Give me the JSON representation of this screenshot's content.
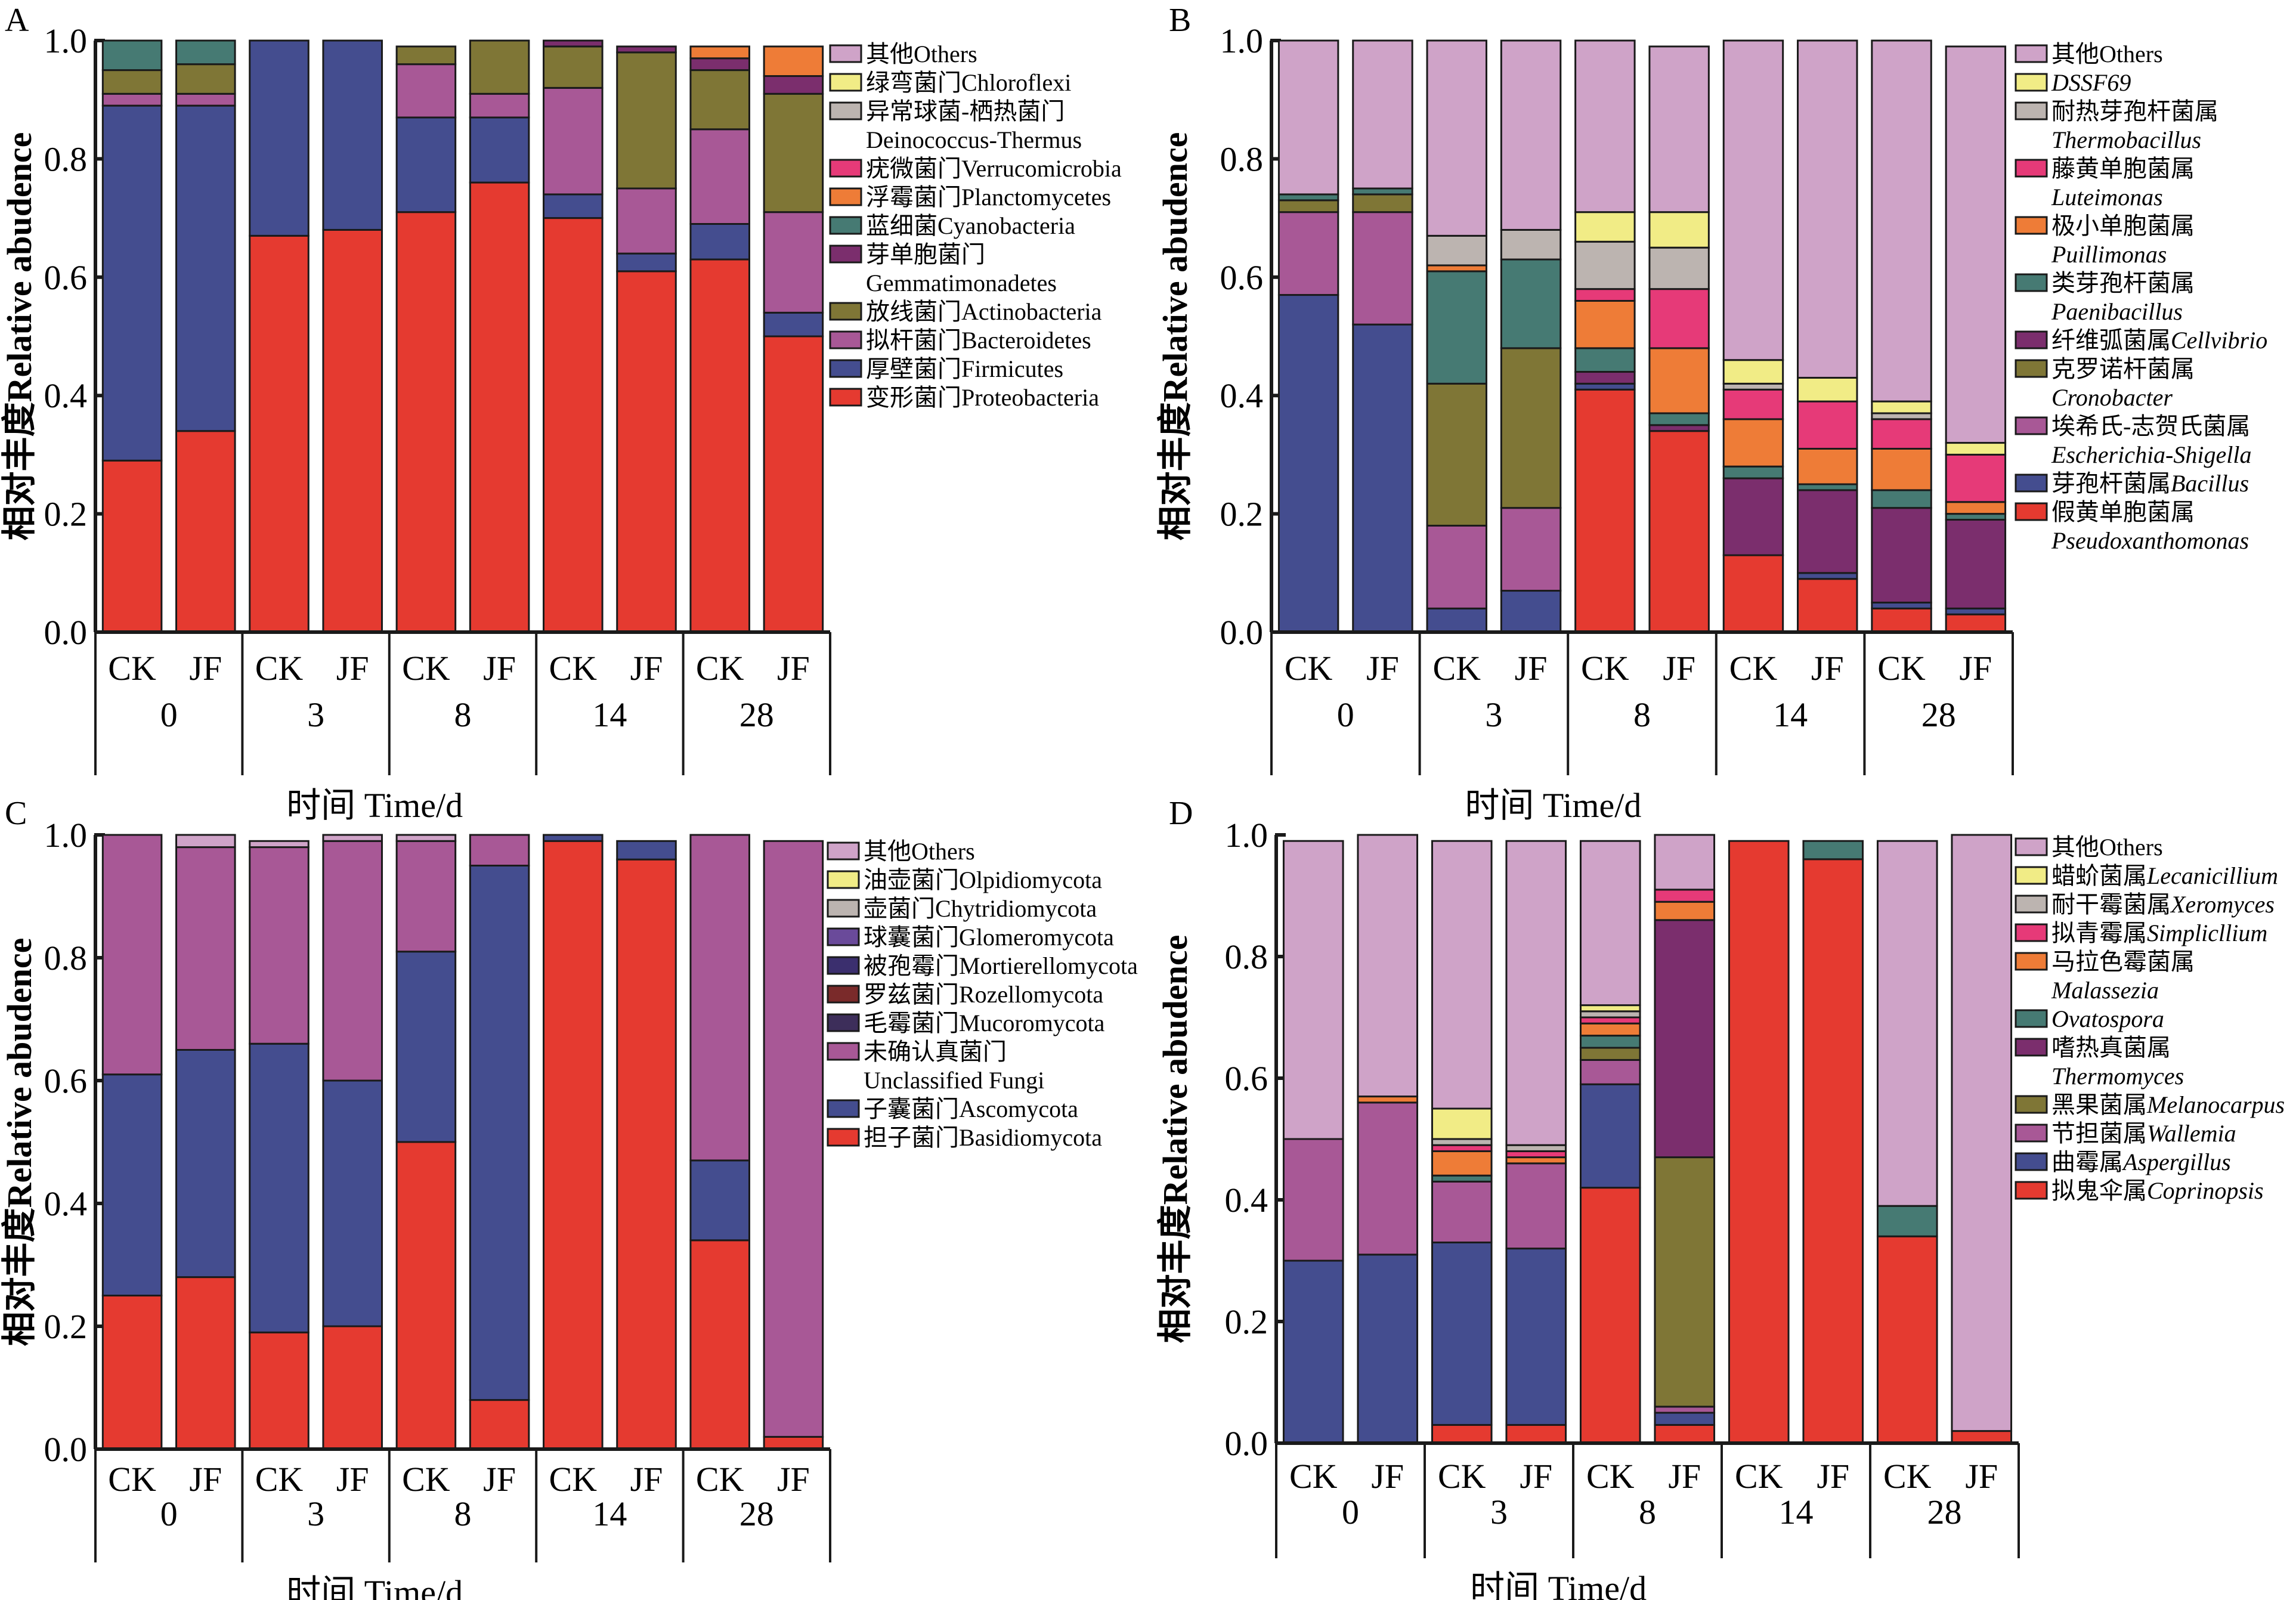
{
  "figure": {
    "y_axis_title": "相对丰度Relative abudence",
    "x_axis_title": "时间  Time/d",
    "groups": [
      "CK",
      "JF"
    ],
    "days": [
      "0",
      "3",
      "8",
      "14",
      "28"
    ],
    "y_ticks": [
      "0.0",
      "0.2",
      "0.4",
      "0.6",
      "0.8",
      "1.0"
    ]
  },
  "chart_data": [
    {
      "panel": "A",
      "type": "bar",
      "stacked": true,
      "title": "A",
      "xlabel": "时间  Time/d",
      "ylabel": "相对丰度Relative abudence",
      "ylim": [
        0,
        1.0
      ],
      "categories": [
        "CK-0",
        "JF-0",
        "CK-3",
        "JF-3",
        "CK-8",
        "JF-8",
        "CK-14",
        "JF-14",
        "CK-28",
        "JF-28"
      ],
      "legend_position": "right",
      "series": [
        {
          "name": "变形菌门Proteobacteria",
          "color": "#e53a30",
          "values": [
            0.29,
            0.34,
            0.67,
            0.68,
            0.71,
            0.76,
            0.7,
            0.61,
            0.63,
            0.5
          ]
        },
        {
          "name": "厚壁菌门Firmicutes",
          "color": "#444d8f",
          "values": [
            0.6,
            0.55,
            0.33,
            0.32,
            0.16,
            0.11,
            0.04,
            0.03,
            0.06,
            0.04
          ]
        },
        {
          "name": "拟杆菌门Bacteroidetes",
          "color": "#a85896",
          "values": [
            0.02,
            0.02,
            0,
            0,
            0.09,
            0.04,
            0.18,
            0.11,
            0.16,
            0.17
          ]
        },
        {
          "name": "放线菌门Actinobacteria",
          "color": "#7f7636",
          "values": [
            0.04,
            0.05,
            0,
            0,
            0.03,
            0.09,
            0.07,
            0.23,
            0.1,
            0.2
          ]
        },
        {
          "name": "芽单胞菌门Gemmatimonadetes",
          "color": "#7b2e6d",
          "values": [
            0,
            0,
            0,
            0,
            0,
            0,
            0.01,
            0.01,
            0.02,
            0.03
          ]
        },
        {
          "name": "蓝细菌Cyanobacteria",
          "color": "#467a73",
          "values": [
            0.05,
            0.04,
            0,
            0,
            0,
            0,
            0,
            0,
            0,
            0
          ]
        },
        {
          "name": "浮霉菌门Planctomycetes",
          "color": "#ee7c37",
          "values": [
            0,
            0,
            0,
            0,
            0,
            0,
            0,
            0,
            0.02,
            0.05
          ]
        },
        {
          "name": "疣微菌门Verrucomicrobia",
          "color": "#e63a78",
          "values": [
            0,
            0,
            0,
            0,
            0,
            0,
            0,
            0,
            0,
            0
          ]
        },
        {
          "name": "异常球菌-栖热菌门Deinococcus-Thermus",
          "color": "#bcb4b0",
          "values": [
            0,
            0,
            0,
            0,
            0,
            0,
            0,
            0,
            0,
            0
          ]
        },
        {
          "name": "绿弯菌门Chloroflexi",
          "color": "#f1ec86",
          "values": [
            0,
            0,
            0,
            0,
            0,
            0,
            0,
            0,
            0,
            0
          ]
        },
        {
          "name": "其他Others",
          "color": "#cfa3c8",
          "values": [
            0,
            0,
            0,
            0,
            0,
            0,
            0,
            0,
            0,
            0
          ]
        }
      ],
      "legend": [
        {
          "cn": "其他Others",
          "en": "",
          "color": "#cfa3c8"
        },
        {
          "cn": "绿弯菌门Chloroflexi",
          "en": "",
          "color": "#f1ec86"
        },
        {
          "cn": "异常球菌-栖热菌门",
          "en": "Deinococcus-Thermus",
          "color": "#bcb4b0"
        },
        {
          "cn": "疣微菌门Verrucomicrobia",
          "en": "",
          "color": "#e63a78"
        },
        {
          "cn": "浮霉菌门Planctomycetes",
          "en": "",
          "color": "#ee7c37"
        },
        {
          "cn": "蓝细菌Cyanobacteria",
          "en": "",
          "color": "#467a73"
        },
        {
          "cn": "芽单胞菌门",
          "en": "Gemmatimonadetes",
          "color": "#7b2e6d"
        },
        {
          "cn": "放线菌门Actinobacteria",
          "en": "",
          "color": "#7f7636"
        },
        {
          "cn": "拟杆菌门Bacteroidetes",
          "en": "",
          "color": "#a85896"
        },
        {
          "cn": "厚壁菌门Firmicutes",
          "en": "",
          "color": "#444d8f"
        },
        {
          "cn": "变形菌门Proteobacteria",
          "en": "",
          "color": "#e53a30"
        }
      ]
    },
    {
      "panel": "B",
      "type": "bar",
      "stacked": true,
      "title": "B",
      "xlabel": "时间  Time/d",
      "ylabel": "相对丰度Relative abudence",
      "ylim": [
        0,
        1.0
      ],
      "categories": [
        "CK-0",
        "JF-0",
        "CK-3",
        "JF-3",
        "CK-8",
        "JF-8",
        "CK-14",
        "JF-14",
        "CK-28",
        "JF-28"
      ],
      "legend_position": "right",
      "series": [
        {
          "name": "假黄单胞菌属Pseudoxanthomonas",
          "color": "#e53a30",
          "values": [
            0,
            0,
            0,
            0,
            0.41,
            0.34,
            0.13,
            0.09,
            0.04,
            0.03
          ]
        },
        {
          "name": "芽孢杆菌属Bacillus",
          "color": "#444d8f",
          "values": [
            0.57,
            0.52,
            0.04,
            0.07,
            0.01,
            0,
            0,
            0.01,
            0.01,
            0.01
          ]
        },
        {
          "name": "埃希氏-志贺氏菌属Escherichia-Shigella",
          "color": "#a85896",
          "values": [
            0.14,
            0.19,
            0.14,
            0.14,
            0,
            0,
            0,
            0,
            0,
            0
          ]
        },
        {
          "name": "克罗诺杆菌属Cronobacter",
          "color": "#7f7636",
          "values": [
            0.02,
            0.03,
            0.24,
            0.27,
            0,
            0,
            0,
            0,
            0,
            0
          ]
        },
        {
          "name": "纤维弧菌属Cellvibrio",
          "color": "#7b2e6d",
          "values": [
            0,
            0,
            0,
            0,
            0.02,
            0.01,
            0.13,
            0.14,
            0.16,
            0.15
          ]
        },
        {
          "name": "类芽孢杆菌属Paenibacillus",
          "color": "#467a73",
          "values": [
            0.01,
            0.01,
            0.19,
            0.15,
            0.04,
            0.02,
            0.02,
            0.01,
            0.03,
            0.01
          ]
        },
        {
          "name": "极小单胞菌属Puillimonas",
          "color": "#ee7c37",
          "values": [
            0,
            0,
            0.01,
            0,
            0.08,
            0.11,
            0.08,
            0.06,
            0.07,
            0.02
          ]
        },
        {
          "name": "藤黄单胞菌属Luteimonas",
          "color": "#e63a78",
          "values": [
            0,
            0,
            0,
            0,
            0.02,
            0.1,
            0.05,
            0.08,
            0.05,
            0.08
          ]
        },
        {
          "name": "耐热芽孢杆菌属Thermobacillus",
          "color": "#bcb4b0",
          "values": [
            0,
            0,
            0.05,
            0.05,
            0.08,
            0.07,
            0.01,
            0,
            0.01,
            0
          ]
        },
        {
          "name": "DSSF69",
          "color": "#f1ec86",
          "values": [
            0,
            0,
            0,
            0,
            0.05,
            0.06,
            0.04,
            0.04,
            0.02,
            0.02
          ]
        },
        {
          "name": "其他Others",
          "color": "#cfa3c8",
          "values": [
            0.26,
            0.25,
            0.33,
            0.32,
            0.29,
            0.28,
            0.54,
            0.57,
            0.61,
            0.67
          ]
        }
      ],
      "legend": [
        {
          "cn": "其他Others",
          "en": "",
          "color": "#cfa3c8"
        },
        {
          "cn": "",
          "en": "DSSF69",
          "color": "#f1ec86"
        },
        {
          "cn": "耐热芽孢杆菌属",
          "en": "Thermobacillus",
          "color": "#bcb4b0"
        },
        {
          "cn": "藤黄单胞菌属",
          "en": "Luteimonas",
          "color": "#e63a78"
        },
        {
          "cn": "极小单胞菌属",
          "en": "Puillimonas",
          "color": "#ee7c37"
        },
        {
          "cn": "类芽孢杆菌属",
          "en": "Paenibacillus",
          "color": "#467a73"
        },
        {
          "cn": "纤维弧菌属",
          "en_inline": "Cellvibrio",
          "color": "#7b2e6d"
        },
        {
          "cn": "克罗诺杆菌属",
          "en": "Cronobacter",
          "color": "#7f7636"
        },
        {
          "cn": "埃希氏-志贺氏菌属",
          "en": "Escherichia-Shigella",
          "color": "#a85896"
        },
        {
          "cn": "芽孢杆菌属",
          "en_inline": "Bacillus",
          "color": "#444d8f"
        },
        {
          "cn": "假黄单胞菌属",
          "en": "Pseudoxanthomonas",
          "color": "#e53a30"
        }
      ]
    },
    {
      "panel": "C",
      "type": "bar",
      "stacked": true,
      "title": "C",
      "xlabel": "时间  Time/d",
      "ylabel": "相对丰度Relative abudence",
      "ylim": [
        0,
        1.0
      ],
      "categories": [
        "CK-0",
        "JF-0",
        "CK-3",
        "JF-3",
        "CK-8",
        "JF-8",
        "CK-14",
        "JF-14",
        "CK-28",
        "JF-28"
      ],
      "legend_position": "right",
      "series": [
        {
          "name": "担子菌门Basidiomycota",
          "color": "#e53a30",
          "values": [
            0.25,
            0.28,
            0.19,
            0.2,
            0.5,
            0.08,
            0.99,
            0.96,
            0.34,
            0.02
          ]
        },
        {
          "name": "子囊菌门Ascomycota",
          "color": "#444d8f",
          "values": [
            0.36,
            0.37,
            0.47,
            0.4,
            0.31,
            0.87,
            0.01,
            0.03,
            0.13,
            0
          ]
        },
        {
          "name": "未确认真菌门Unclassified Fungi",
          "color": "#a85896",
          "values": [
            0.39,
            0.33,
            0.32,
            0.39,
            0.18,
            0.05,
            0,
            0,
            0.53,
            0.97
          ]
        },
        {
          "name": "毛霉菌门Mucoromycota",
          "color": "#3d2e5a",
          "values": [
            0,
            0,
            0,
            0,
            0,
            0,
            0,
            0,
            0,
            0
          ]
        },
        {
          "name": "罗兹菌门Rozellomycota",
          "color": "#7a2a2a",
          "values": [
            0,
            0,
            0,
            0,
            0,
            0,
            0,
            0,
            0,
            0
          ]
        },
        {
          "name": "被孢霉门Mortierellomycota",
          "color": "#3b2f6e",
          "values": [
            0,
            0,
            0,
            0,
            0,
            0,
            0,
            0,
            0,
            0
          ]
        },
        {
          "name": "球囊菌门Glomeromycota",
          "color": "#6a4a9a",
          "values": [
            0,
            0,
            0,
            0,
            0,
            0,
            0,
            0,
            0,
            0
          ]
        },
        {
          "name": "壶菌门Chytridiomycota",
          "color": "#bcb4b0",
          "values": [
            0,
            0,
            0,
            0,
            0,
            0,
            0,
            0,
            0,
            0
          ]
        },
        {
          "name": "油壶菌门Olpidiomycota",
          "color": "#f1ec86",
          "values": [
            0,
            0,
            0,
            0,
            0,
            0,
            0,
            0,
            0,
            0
          ]
        },
        {
          "name": "其他Others",
          "color": "#cfa3c8",
          "values": [
            0,
            0.02,
            0.01,
            0.01,
            0.01,
            0,
            0,
            0,
            0,
            0
          ]
        }
      ],
      "legend": [
        {
          "cn": "其他Others",
          "en": "",
          "color": "#cfa3c8"
        },
        {
          "cn": "油壶菌门Olpidiomycota",
          "en": "",
          "color": "#f1ec86"
        },
        {
          "cn": "壶菌门Chytridiomycota",
          "en": "",
          "color": "#bcb4b0"
        },
        {
          "cn": "球囊菌门Glomeromycota",
          "en": "",
          "color": "#6a4a9a"
        },
        {
          "cn": "被孢霉门Mortierellomycota",
          "en": "",
          "color": "#3b2f6e"
        },
        {
          "cn": "罗兹菌门Rozellomycota",
          "en": "",
          "color": "#7a2a2a"
        },
        {
          "cn": "毛霉菌门Mucoromycota",
          "en": "",
          "color": "#3d2e5a"
        },
        {
          "cn": "未确认真菌门",
          "en": "Unclassified Fungi",
          "color": "#a85896"
        },
        {
          "cn": "子囊菌门Ascomycota",
          "en": "",
          "color": "#444d8f"
        },
        {
          "cn": "担子菌门Basidiomycota",
          "en": "",
          "color": "#e53a30"
        }
      ]
    },
    {
      "panel": "D",
      "type": "bar",
      "stacked": true,
      "title": "D",
      "xlabel": "时间  Time/d",
      "ylabel": "相对丰度Relative abudence",
      "ylim": [
        0,
        1.0
      ],
      "categories": [
        "CK-0",
        "JF-0",
        "CK-3",
        "JF-3",
        "CK-8",
        "JF-8",
        "CK-14",
        "JF-14",
        "CK-28",
        "JF-28"
      ],
      "legend_position": "right",
      "series": [
        {
          "name": "拟鬼伞属Coprinopsis",
          "color": "#e53a30",
          "values": [
            0,
            0,
            0.03,
            0.03,
            0.42,
            0.03,
            0.99,
            0.96,
            0.34,
            0.02
          ]
        },
        {
          "name": "曲霉属Aspergillus",
          "color": "#444d8f",
          "values": [
            0.3,
            0.31,
            0.3,
            0.29,
            0.17,
            0.02,
            0,
            0,
            0,
            0
          ]
        },
        {
          "name": "节担菌属Wallemia",
          "color": "#a85896",
          "values": [
            0.2,
            0.25,
            0.1,
            0.14,
            0.04,
            0.01,
            0,
            0,
            0,
            0
          ]
        },
        {
          "name": "黑果菌属Melanocarpus",
          "color": "#7f7636",
          "values": [
            0,
            0,
            0,
            0,
            0.02,
            0.41,
            0,
            0,
            0,
            0
          ]
        },
        {
          "name": "嗜热真菌属Thermomyces",
          "color": "#7b2e6d",
          "values": [
            0,
            0,
            0,
            0,
            0,
            0.39,
            0,
            0,
            0,
            0
          ]
        },
        {
          "name": "Ovatospora",
          "color": "#467a73",
          "values": [
            0,
            0,
            0.01,
            0,
            0.02,
            0,
            0,
            0.03,
            0.05,
            0
          ]
        },
        {
          "name": "马拉色霉菌属Malassezia",
          "color": "#ee7c37",
          "values": [
            0,
            0.01,
            0.04,
            0.01,
            0.02,
            0.03,
            0,
            0,
            0,
            0
          ]
        },
        {
          "name": "拟青霉属Simplicllium",
          "color": "#e63a78",
          "values": [
            0,
            0,
            0.01,
            0.01,
            0.01,
            0.02,
            0,
            0,
            0,
            0
          ]
        },
        {
          "name": "耐干霉菌属Xeromyces",
          "color": "#bcb4b0",
          "values": [
            0,
            0,
            0.01,
            0.01,
            0.01,
            0,
            0,
            0,
            0,
            0
          ]
        },
        {
          "name": "蜡蚧菌属Lecanicillium",
          "color": "#f1ec86",
          "values": [
            0,
            0,
            0.05,
            0,
            0.01,
            0,
            0,
            0,
            0,
            0
          ]
        },
        {
          "name": "其他Others",
          "color": "#cfa3c8",
          "values": [
            0.49,
            0.43,
            0.44,
            0.5,
            0.27,
            0.09,
            0,
            0,
            0.6,
            0.98
          ]
        }
      ],
      "legend": [
        {
          "cn": "其他Others",
          "en": "",
          "color": "#cfa3c8"
        },
        {
          "cn": "蜡蚧菌属",
          "en_inline": "Lecanicillium",
          "color": "#f1ec86"
        },
        {
          "cn": "耐干霉菌属",
          "en_inline": "Xeromyces",
          "color": "#bcb4b0"
        },
        {
          "cn": "拟青霉属",
          "en_inline": "Simplicllium",
          "color": "#e63a78"
        },
        {
          "cn": "马拉色霉菌属",
          "en": "Malassezia",
          "color": "#ee7c37"
        },
        {
          "cn": "",
          "en_inline": "Ovatospora",
          "color": "#467a73"
        },
        {
          "cn": "嗜热真菌属",
          "en": "Thermomyces",
          "color": "#7b2e6d"
        },
        {
          "cn": "黑果菌属",
          "en_inline": "Melanocarpus",
          "color": "#7f7636"
        },
        {
          "cn": "节担菌属",
          "en_inline": "Wallemia",
          "color": "#a85896"
        },
        {
          "cn": "曲霉属",
          "en_inline": "Aspergillus",
          "color": "#444d8f"
        },
        {
          "cn": "拟鬼伞属",
          "en_inline": "Coprinopsis",
          "color": "#e53a30"
        }
      ]
    }
  ]
}
